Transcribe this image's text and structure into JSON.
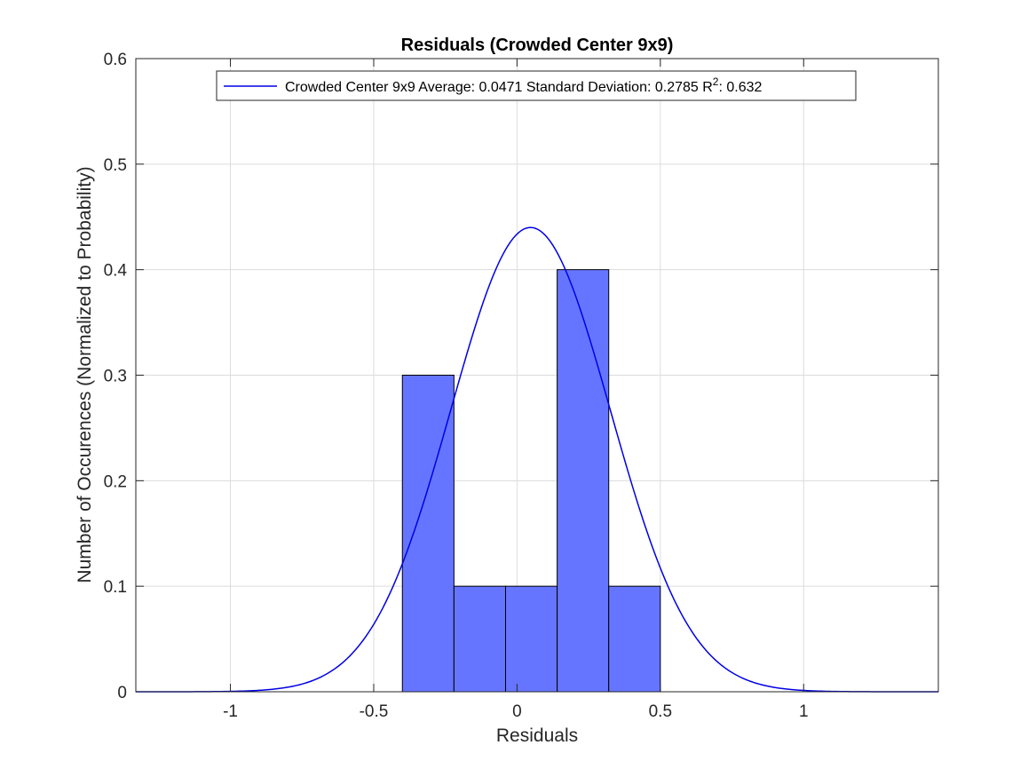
{
  "chart_data": {
    "type": "bar",
    "title": "Residuals (Crowded Center 9x9)",
    "xlabel": "Residuals",
    "ylabel": "Number of Occurences (Normalized to Probability)",
    "xlim": [
      -1.33,
      1.47
    ],
    "ylim": [
      0,
      0.6
    ],
    "xticks": [
      -1,
      -0.5,
      0,
      0.5,
      1
    ],
    "xtick_labels": [
      "-1",
      "-0.5",
      "0",
      "0.5",
      "1"
    ],
    "yticks": [
      0,
      0.1,
      0.2,
      0.3,
      0.4,
      0.5,
      0.6
    ],
    "ytick_labels": [
      "0",
      "0.1",
      "0.2",
      "0.3",
      "0.4",
      "0.5",
      "0.6"
    ],
    "grid": true,
    "legend_position": "top",
    "bars": {
      "color": "#6675ff",
      "edges": [
        -0.4,
        -0.22,
        -0.04,
        0.14,
        0.32,
        0.5
      ],
      "values": [
        0.3,
        0.1,
        0.1,
        0.4,
        0.1
      ]
    },
    "fit": {
      "color": "#0000e6",
      "mean": 0.0471,
      "std": 0.2785,
      "peak": 0.44
    },
    "legend": {
      "label_main": "Crowded Center 9x9 Average: 0.0471 Standard Deviation: 0.2785 R",
      "label_sup": "2",
      "label_tail": ": 0.632"
    }
  }
}
